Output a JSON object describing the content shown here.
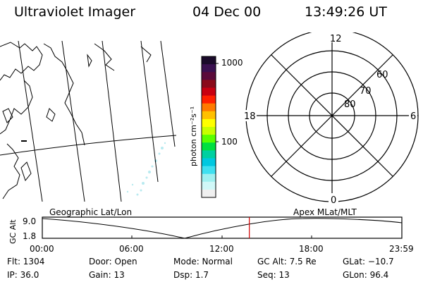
{
  "header": {
    "title": "Ultraviolet Imager",
    "date": "04 Dec 00",
    "time": "13:49:26 UT"
  },
  "colorbar": {
    "label": "photon cm⁻²s⁻¹",
    "ticks": [
      "1000",
      "100"
    ],
    "colors": [
      "#1a0a2a",
      "#3a1050",
      "#5a0a3a",
      "#8a0a1a",
      "#c80010",
      "#ff2000",
      "#ff7a00",
      "#ffc000",
      "#ffff00",
      "#c8ff00",
      "#5aff00",
      "#00e040",
      "#00d0a0",
      "#00c8e0",
      "#40e0f0",
      "#a0f0f0",
      "#d0f8f8",
      "#f0f0f0"
    ]
  },
  "polar": {
    "mlt_labels": {
      "top": "12",
      "left": "18",
      "right": "6",
      "bottom": "0"
    },
    "lat_labels": [
      "80",
      "70",
      "60"
    ]
  },
  "timeline": {
    "left_label": "Geographic Lat/Lon",
    "right_label": "Apex MLat/MLT",
    "axis_label": "GC Alt",
    "y_ticks": [
      "9.0",
      "1.8"
    ],
    "x_ticks": [
      "00:00",
      "06:00",
      "12:00",
      "18:00",
      "23:59"
    ],
    "current_time_hours": 13.82
  },
  "info": {
    "flt": "Flt: 1304",
    "ip": "IP: 36.0",
    "door": "Door:  Open",
    "gain": "Gain: 13",
    "mode": "Mode:  Normal",
    "dsp": "Dsp:      1.7",
    "gcalt": "GC Alt:  7.5 Re",
    "seq": "Seq:  13",
    "glat": "GLat:  −10.7",
    "glon": "GLon:   96.4"
  }
}
